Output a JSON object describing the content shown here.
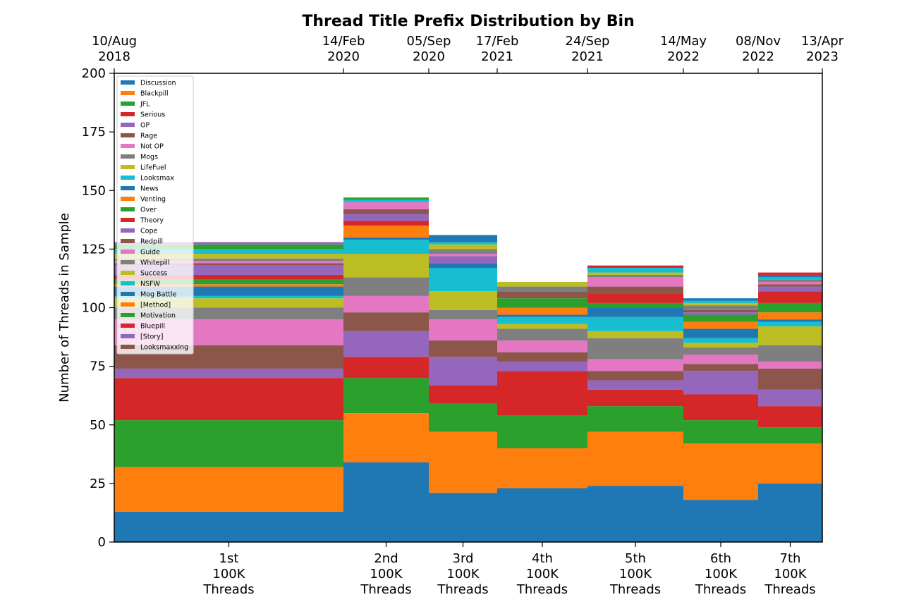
{
  "chart_data": {
    "type": "bar",
    "stacked": true,
    "variable_width": true,
    "title": "Thread Title Prefix Distribution by Bin",
    "ylabel": "Number of Threads in Sample",
    "xlabel": "",
    "ylim": [
      0,
      200
    ],
    "yticks": [
      0,
      25,
      50,
      75,
      100,
      125,
      150,
      175,
      200
    ],
    "top_axis_dates": [
      [
        "10/Aug",
        "2018"
      ],
      [
        "14/Feb",
        "2020"
      ],
      [
        "05/Sep",
        "2020"
      ],
      [
        "17/Feb",
        "2021"
      ],
      [
        "24/Sep",
        "2021"
      ],
      [
        "14/May",
        "2022"
      ],
      [
        "08/Nov",
        "2022"
      ],
      [
        "13/Apr",
        "2023"
      ]
    ],
    "categories": [
      [
        "1st",
        "100K",
        "Threads"
      ],
      [
        "2nd",
        "100K",
        "Threads"
      ],
      [
        "3rd",
        "100K",
        "Threads"
      ],
      [
        "4th",
        "100K",
        "Threads"
      ],
      [
        "5th",
        "100K",
        "Threads"
      ],
      [
        "6th",
        "100K",
        "Threads"
      ],
      [
        "7th",
        "100K",
        "Threads"
      ]
    ],
    "legend_position": "upper-left",
    "grid": false,
    "series": [
      {
        "name": "Discussion",
        "color": "#1f77b4",
        "values": [
          13,
          34,
          21,
          23,
          24,
          18,
          25
        ]
      },
      {
        "name": "Blackpill",
        "color": "#ff7f0e",
        "values": [
          19,
          21,
          26,
          17,
          23,
          24,
          17
        ]
      },
      {
        "name": "JFL",
        "color": "#2ca02c",
        "values": [
          20,
          15,
          12,
          14,
          11,
          10,
          7
        ]
      },
      {
        "name": "Serious",
        "color": "#d62728",
        "values": [
          18,
          9,
          8,
          19,
          7,
          11,
          9
        ]
      },
      {
        "name": "OP",
        "color": "#9467bd",
        "values": [
          4,
          11,
          12,
          4,
          4,
          10,
          7
        ]
      },
      {
        "name": "Rage",
        "color": "#8c564b",
        "values": [
          10,
          8,
          7,
          4,
          4,
          3,
          9
        ]
      },
      {
        "name": "Not OP",
        "color": "#e377c2",
        "values": [
          11,
          7,
          9,
          5,
          5,
          4,
          3
        ]
      },
      {
        "name": "Mogs",
        "color": "#7f7f7f",
        "values": [
          5,
          8,
          4,
          5,
          9,
          3,
          7
        ]
      },
      {
        "name": "LifeFuel",
        "color": "#bcbd22",
        "values": [
          4,
          10,
          8,
          2,
          3,
          2,
          8
        ]
      },
      {
        "name": "Looksmax",
        "color": "#17becf",
        "values": [
          1,
          6,
          10,
          3,
          6,
          2,
          2
        ]
      },
      {
        "name": "News",
        "color": "#1f77b4",
        "values": [
          4,
          1,
          2,
          1,
          4,
          4,
          1
        ]
      },
      {
        "name": "Venting",
        "color": "#ff7f0e",
        "values": [
          1,
          5,
          0,
          3,
          0,
          3,
          3
        ]
      },
      {
        "name": "Over",
        "color": "#2ca02c",
        "values": [
          2,
          0,
          0,
          4,
          2,
          3,
          4
        ]
      },
      {
        "name": "Theory",
        "color": "#d62728",
        "values": [
          2,
          2,
          0,
          0,
          4,
          0,
          5
        ]
      },
      {
        "name": "Cope",
        "color": "#9467bd",
        "values": [
          4,
          3,
          3,
          0,
          0,
          1,
          2
        ]
      },
      {
        "name": "Redpill",
        "color": "#8c564b",
        "values": [
          1,
          2,
          0,
          3,
          3,
          1,
          1
        ]
      },
      {
        "name": "Guide",
        "color": "#e377c2",
        "values": [
          1,
          3,
          1,
          0,
          4,
          0,
          1
        ]
      },
      {
        "name": "Whitepill",
        "color": "#7f7f7f",
        "values": [
          1,
          0,
          2,
          2,
          1,
          2,
          1
        ]
      },
      {
        "name": "Success",
        "color": "#bcbd22",
        "values": [
          2,
          0,
          2,
          2,
          1,
          1,
          0
        ]
      },
      {
        "name": "NSFW",
        "color": "#17becf",
        "values": [
          2,
          1,
          1,
          0,
          2,
          1,
          1
        ]
      },
      {
        "name": "Mog Battle",
        "color": "#1f77b4",
        "values": [
          0,
          0,
          3,
          0,
          0,
          1,
          1
        ]
      },
      {
        "name": "[Method]",
        "color": "#ff7f0e",
        "values": [
          0,
          0,
          0,
          0,
          0,
          0,
          0
        ]
      },
      {
        "name": "Motivation",
        "color": "#2ca02c",
        "values": [
          2,
          1,
          0,
          0,
          0,
          0,
          0
        ]
      },
      {
        "name": "Bluepill",
        "color": "#d62728",
        "values": [
          0,
          0,
          0,
          0,
          1,
          0,
          1
        ]
      },
      {
        "name": "[Story]",
        "color": "#9467bd",
        "values": [
          1,
          0,
          0,
          0,
          0,
          0,
          0
        ]
      },
      {
        "name": "Looksmaxxing",
        "color": "#8c564b",
        "values": [
          0,
          0,
          0,
          0,
          0,
          0,
          0
        ]
      }
    ]
  }
}
